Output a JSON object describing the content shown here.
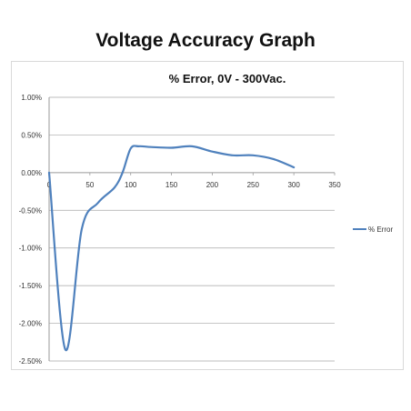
{
  "page_title": "Voltage Accuracy Graph",
  "chart_data": {
    "type": "line",
    "title": "% Error, 0V - 300Vac.",
    "xlabel": "",
    "ylabel": "",
    "xlim": [
      0,
      350
    ],
    "ylim": [
      -2.5,
      1.0
    ],
    "x_ticks": [
      0,
      50,
      100,
      150,
      200,
      250,
      300,
      350
    ],
    "y_ticks": [
      1.0,
      0.5,
      0.0,
      -0.5,
      -1.0,
      -1.5,
      -2.0,
      -2.5
    ],
    "y_tick_labels": [
      "1.00%",
      "0.50%",
      "0.00%",
      "-0.50%",
      "-1.00%",
      "-1.50%",
      "-2.00%",
      "-2.50%"
    ],
    "grid": true,
    "legend_position": "right",
    "series": [
      {
        "name": "% Error",
        "color": "#4f81bd",
        "x": [
          0,
          20,
          40,
          60,
          80,
          90,
          100,
          110,
          125,
          150,
          175,
          200,
          225,
          250,
          275,
          300
        ],
        "y": [
          0.0,
          -2.35,
          -0.75,
          -0.4,
          -0.2,
          0.0,
          0.32,
          0.35,
          0.34,
          0.33,
          0.35,
          0.28,
          0.23,
          0.23,
          0.18,
          0.07
        ]
      }
    ]
  }
}
